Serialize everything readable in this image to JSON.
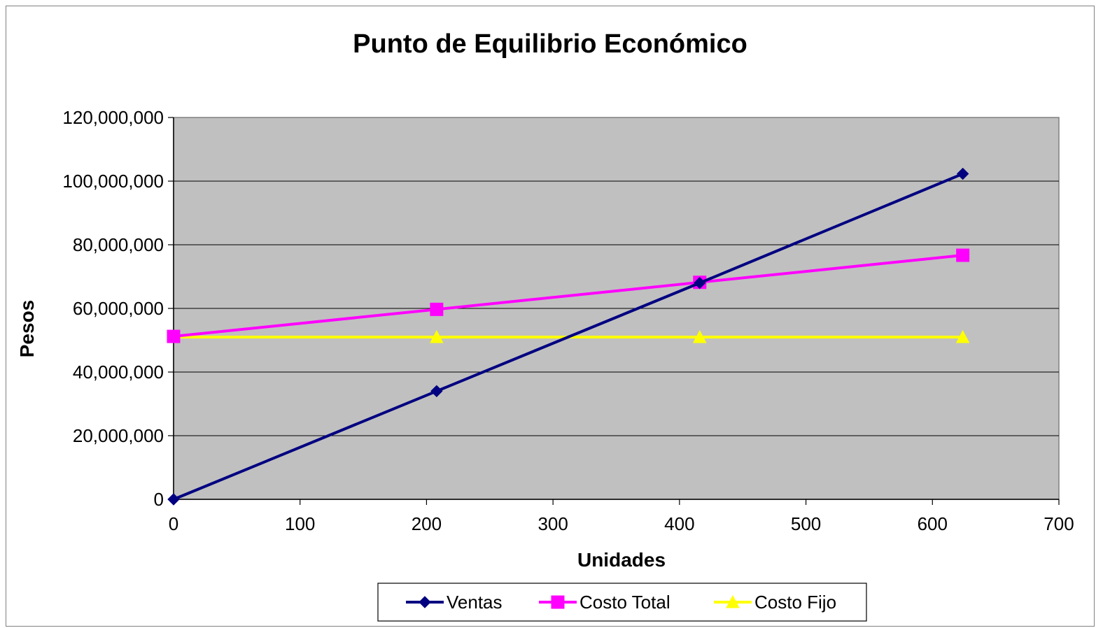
{
  "chart_data": {
    "type": "line",
    "title": "Punto de Equilibrio Económico",
    "xlabel": "Unidades",
    "ylabel": "Pesos",
    "xlim": [
      0,
      700
    ],
    "ylim": [
      0,
      120000000
    ],
    "x_ticks": [
      0,
      100,
      200,
      300,
      400,
      500,
      600,
      700
    ],
    "y_ticks": [
      0,
      20000000,
      40000000,
      60000000,
      80000000,
      100000000,
      120000000
    ],
    "x_tick_labels": [
      "0",
      "100",
      "200",
      "300",
      "400",
      "500",
      "600",
      "700"
    ],
    "y_tick_labels": [
      "0",
      "20,000,000",
      "40,000,000",
      "60,000,000",
      "80,000,000",
      "100,000,000",
      "120,000,000"
    ],
    "grid": true,
    "plot_background": "#c0c0c0",
    "legend_position": "bottom",
    "x": [
      0,
      208,
      416,
      624
    ],
    "series": [
      {
        "name": "Ventas",
        "values": [
          0,
          34000000,
          68000000,
          102300000
        ],
        "color": "#000080",
        "marker": "diamond"
      },
      {
        "name": "Costo Total",
        "values": [
          51200000,
          59700000,
          68200000,
          76700000
        ],
        "color": "#ff00ff",
        "marker": "square"
      },
      {
        "name": "Costo Fijo",
        "values": [
          51000000,
          51000000,
          51000000,
          51000000
        ],
        "color": "#ffff00",
        "marker": "triangle"
      }
    ]
  }
}
